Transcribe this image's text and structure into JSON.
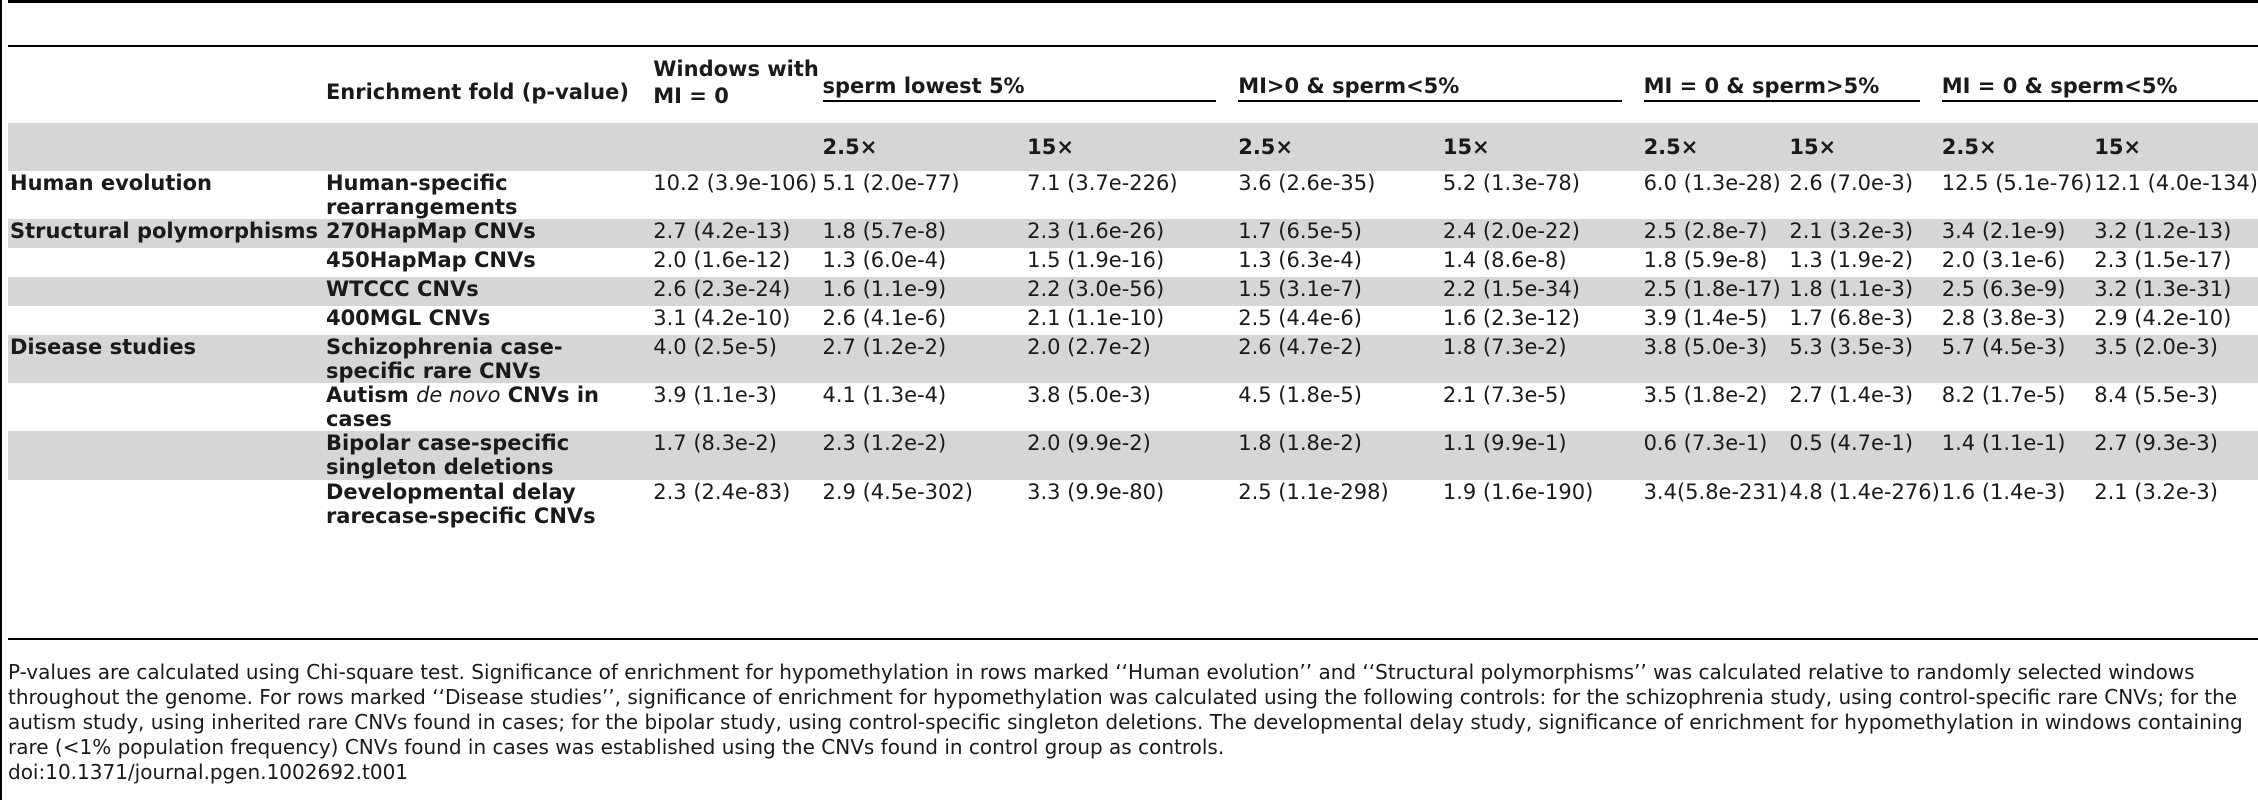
{
  "table": {
    "headers": {
      "col_enrichment": "Enrichment fold (p-value)",
      "col_windows": "Windows with MI = 0",
      "group1": "sperm lowest 5%",
      "group2": "MI>0 & sperm<5%",
      "group3": "MI = 0 & sperm>5%",
      "group4": "MI = 0 & sperm<5%",
      "sub_a": "2.5×",
      "sub_b": "15×"
    },
    "rows": [
      {
        "category": "Human evolution",
        "label": "Human-specific rearrangements",
        "v": [
          "10.2 (3.9e-106)",
          "5.1 (2.0e-77)",
          "7.1 (3.7e-226)",
          "3.6 (2.6e-35)",
          "5.2 (1.3e-78)",
          "6.0 (1.3e-28)",
          "2.6 (7.0e-3)",
          "12.5 (5.1e-76)",
          "12.1 (4.0e-134)"
        ]
      },
      {
        "category": "Structural polymorphisms",
        "label": "270HapMap CNVs",
        "v": [
          "2.7 (4.2e-13)",
          "1.8 (5.7e-8)",
          "2.3 (1.6e-26)",
          "1.7 (6.5e-5)",
          "2.4 (2.0e-22)",
          "2.5 (2.8e-7)",
          "2.1 (3.2e-3)",
          "3.4 (2.1e-9)",
          "3.2 (1.2e-13)"
        ]
      },
      {
        "category": "",
        "label": "450HapMap CNVs",
        "v": [
          "2.0 (1.6e-12)",
          "1.3 (6.0e-4)",
          "1.5 (1.9e-16)",
          "1.3 (6.3e-4)",
          "1.4 (8.6e-8)",
          "1.8 (5.9e-8)",
          "1.3 (1.9e-2)",
          "2.0 (3.1e-6)",
          "2.3 (1.5e-17)"
        ]
      },
      {
        "category": "",
        "label": "WTCCC CNVs",
        "v": [
          "2.6 (2.3e-24)",
          "1.6 (1.1e-9)",
          "2.2 (3.0e-56)",
          "1.5 (3.1e-7)",
          "2.2 (1.5e-34)",
          "2.5 (1.8e-17)",
          "1.8 (1.1e-3)",
          "2.5 (6.3e-9)",
          "3.2 (1.3e-31)"
        ]
      },
      {
        "category": "",
        "label": "400MGL CNVs",
        "v": [
          "3.1 (4.2e-10)",
          "2.6 (4.1e-6)",
          "2.1 (1.1e-10)",
          "2.5 (4.4e-6)",
          "1.6 (2.3e-12)",
          "3.9 (1.4e-5)",
          "1.7 (6.8e-3)",
          "2.8 (3.8e-3)",
          "2.9 (4.2e-10)"
        ]
      },
      {
        "category": "Disease studies",
        "label": "Schizophrenia case-specific rare CNVs",
        "v": [
          "4.0 (2.5e-5)",
          "2.7 (1.2e-2)",
          "2.0 (2.7e-2)",
          "2.6 (4.7e-2)",
          "1.8 (7.3e-2)",
          "3.8 (5.0e-3)",
          "5.3 (3.5e-3)",
          "5.7 (4.5e-3)",
          "3.5 (2.0e-3)"
        ]
      },
      {
        "category": "",
        "label_pre": "Autism ",
        "label_em": "de novo",
        "label_post": " CNVs in cases",
        "v": [
          "3.9 (1.1e-3)",
          "4.1 (1.3e-4)",
          "3.8 (5.0e-3)",
          "4.5 (1.8e-5)",
          "2.1 (7.3e-5)",
          "3.5 (1.8e-2)",
          "2.7 (1.4e-3)",
          "8.2 (1.7e-5)",
          "8.4 (5.5e-3)"
        ]
      },
      {
        "category": "",
        "label": "Bipolar case-specific singleton deletions",
        "v": [
          "1.7 (8.3e-2)",
          "2.3 (1.2e-2)",
          "2.0 (9.9e-2)",
          "1.8 (1.8e-2)",
          "1.1 (9.9e-1)",
          "0.6 (7.3e-1)",
          "0.5 (4.7e-1)",
          "1.4 (1.1e-1)",
          "2.7 (9.3e-3)"
        ]
      },
      {
        "category": "",
        "label": "Developmental delay rarecase-specific CNVs",
        "v": [
          "2.3 (2.4e-83)",
          "2.9 (4.5e-302)",
          "3.3 (9.9e-80)",
          "2.5 (1.1e-298)",
          "1.9 (1.6e-190)",
          "3.4(5.8e-231)",
          "4.8 (1.4e-276)",
          "1.6 (1.4e-3)",
          "2.1 (3.2e-3)"
        ]
      }
    ]
  },
  "footnote": {
    "text": "P-values are calculated using Chi-square test. Significance of enrichment for hypomethylation in rows marked ‘‘Human evolution’’ and ‘‘Structural polymorphisms’’ was calculated relative to randomly selected windows throughout the genome. For rows marked ‘‘Disease studies’’, significance of enrichment for hypomethylation was calculated using the following controls: for the schizophrenia study, using control-specific rare CNVs; for the autism study, using inherited rare CNVs found in cases; for the bipolar study, using control-specific singleton deletions. The developmental delay study, significance of enrichment for hypomethylation in windows containing rare (<1% population frequency) CNVs found in cases was established using the CNVs found in control group as controls.",
    "doi": "doi:10.1371/journal.pgen.1002692.t001"
  }
}
